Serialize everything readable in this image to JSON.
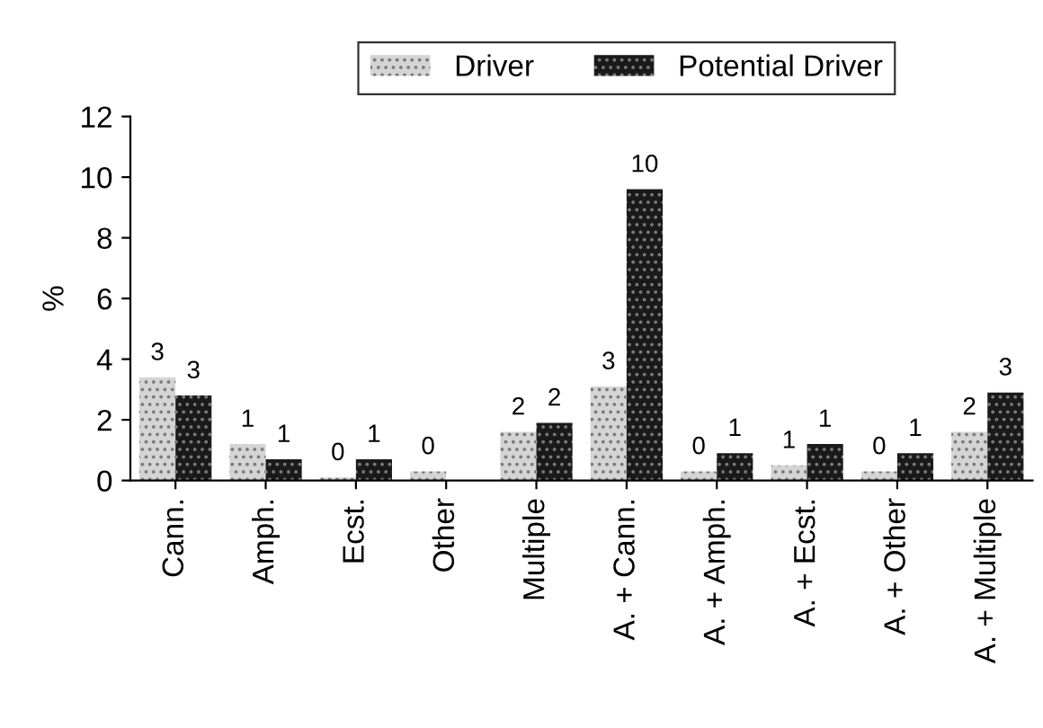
{
  "chart_data": {
    "type": "bar",
    "ylabel": "%",
    "categories": [
      "Cann.",
      "Amph.",
      "Ecst.",
      "Other",
      "Multiple",
      "A. + Cann.",
      "A. + Amph.",
      "A. + Ecst.",
      "A. + Other",
      "A. + Multiple"
    ],
    "series": [
      {
        "name": "Driver",
        "color": "#d4d4d4",
        "values": [
          3.4,
          1.2,
          0.1,
          0.3,
          1.6,
          3.1,
          0.3,
          0.5,
          0.3,
          1.6
        ],
        "value_labels": [
          "3",
          "1",
          "0",
          "0",
          "2",
          "3",
          "0",
          "1",
          "0",
          "2"
        ]
      },
      {
        "name": "Potential Driver",
        "color": "#1a1a1a",
        "values": [
          2.8,
          0.7,
          0.7,
          null,
          1.9,
          9.6,
          0.9,
          1.2,
          0.9,
          2.9
        ],
        "value_labels": [
          "3",
          "1",
          "1",
          null,
          "2",
          "10",
          "1",
          "1",
          "1",
          "3"
        ]
      }
    ],
    "ylim": [
      0,
      12
    ],
    "yticks": [
      0,
      2,
      4,
      6,
      8,
      10,
      12
    ],
    "grid": false,
    "legend": "top"
  }
}
